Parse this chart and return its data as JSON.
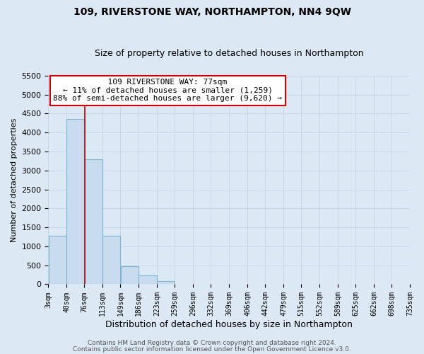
{
  "title": "109, RIVERSTONE WAY, NORTHAMPTON, NN4 9QW",
  "subtitle": "Size of property relative to detached houses in Northampton",
  "xlabel": "Distribution of detached houses by size in Northampton",
  "ylabel": "Number of detached properties",
  "footer_line1": "Contains HM Land Registry data © Crown copyright and database right 2024.",
  "footer_line2": "Contains public sector information licensed under the Open Government Licence v3.0.",
  "annotation_title": "109 RIVERSTONE WAY: 77sqm",
  "annotation_line1": "← 11% of detached houses are smaller (1,259)",
  "annotation_line2": "88% of semi-detached houses are larger (9,620) →",
  "property_size_sqm": 77,
  "bar_edges": [
    3,
    40,
    76,
    113,
    149,
    186,
    223,
    259,
    296,
    332,
    369,
    406,
    442,
    479,
    515,
    552,
    589,
    625,
    662,
    698,
    735
  ],
  "bar_heights": [
    1270,
    4360,
    3290,
    1280,
    480,
    240,
    90,
    0,
    0,
    0,
    0,
    0,
    0,
    0,
    0,
    0,
    0,
    0,
    0,
    0
  ],
  "bar_color": "#c8dcee",
  "bar_edge_color": "#7ab4d4",
  "vline_color": "#cc0000",
  "vline_x": 77,
  "annotation_box_edge_color": "#cc0000",
  "annotation_box_bg": "#ffffff",
  "ylim": [
    0,
    5500
  ],
  "yticks": [
    0,
    500,
    1000,
    1500,
    2000,
    2500,
    3000,
    3500,
    4000,
    4500,
    5000,
    5500
  ],
  "grid_color": "#c8d8e8",
  "bg_color": "#dce8f4",
  "plot_bg_color": "#dce8f4",
  "title_fontsize": 10,
  "subtitle_fontsize": 9,
  "footer_fontsize": 6.5
}
